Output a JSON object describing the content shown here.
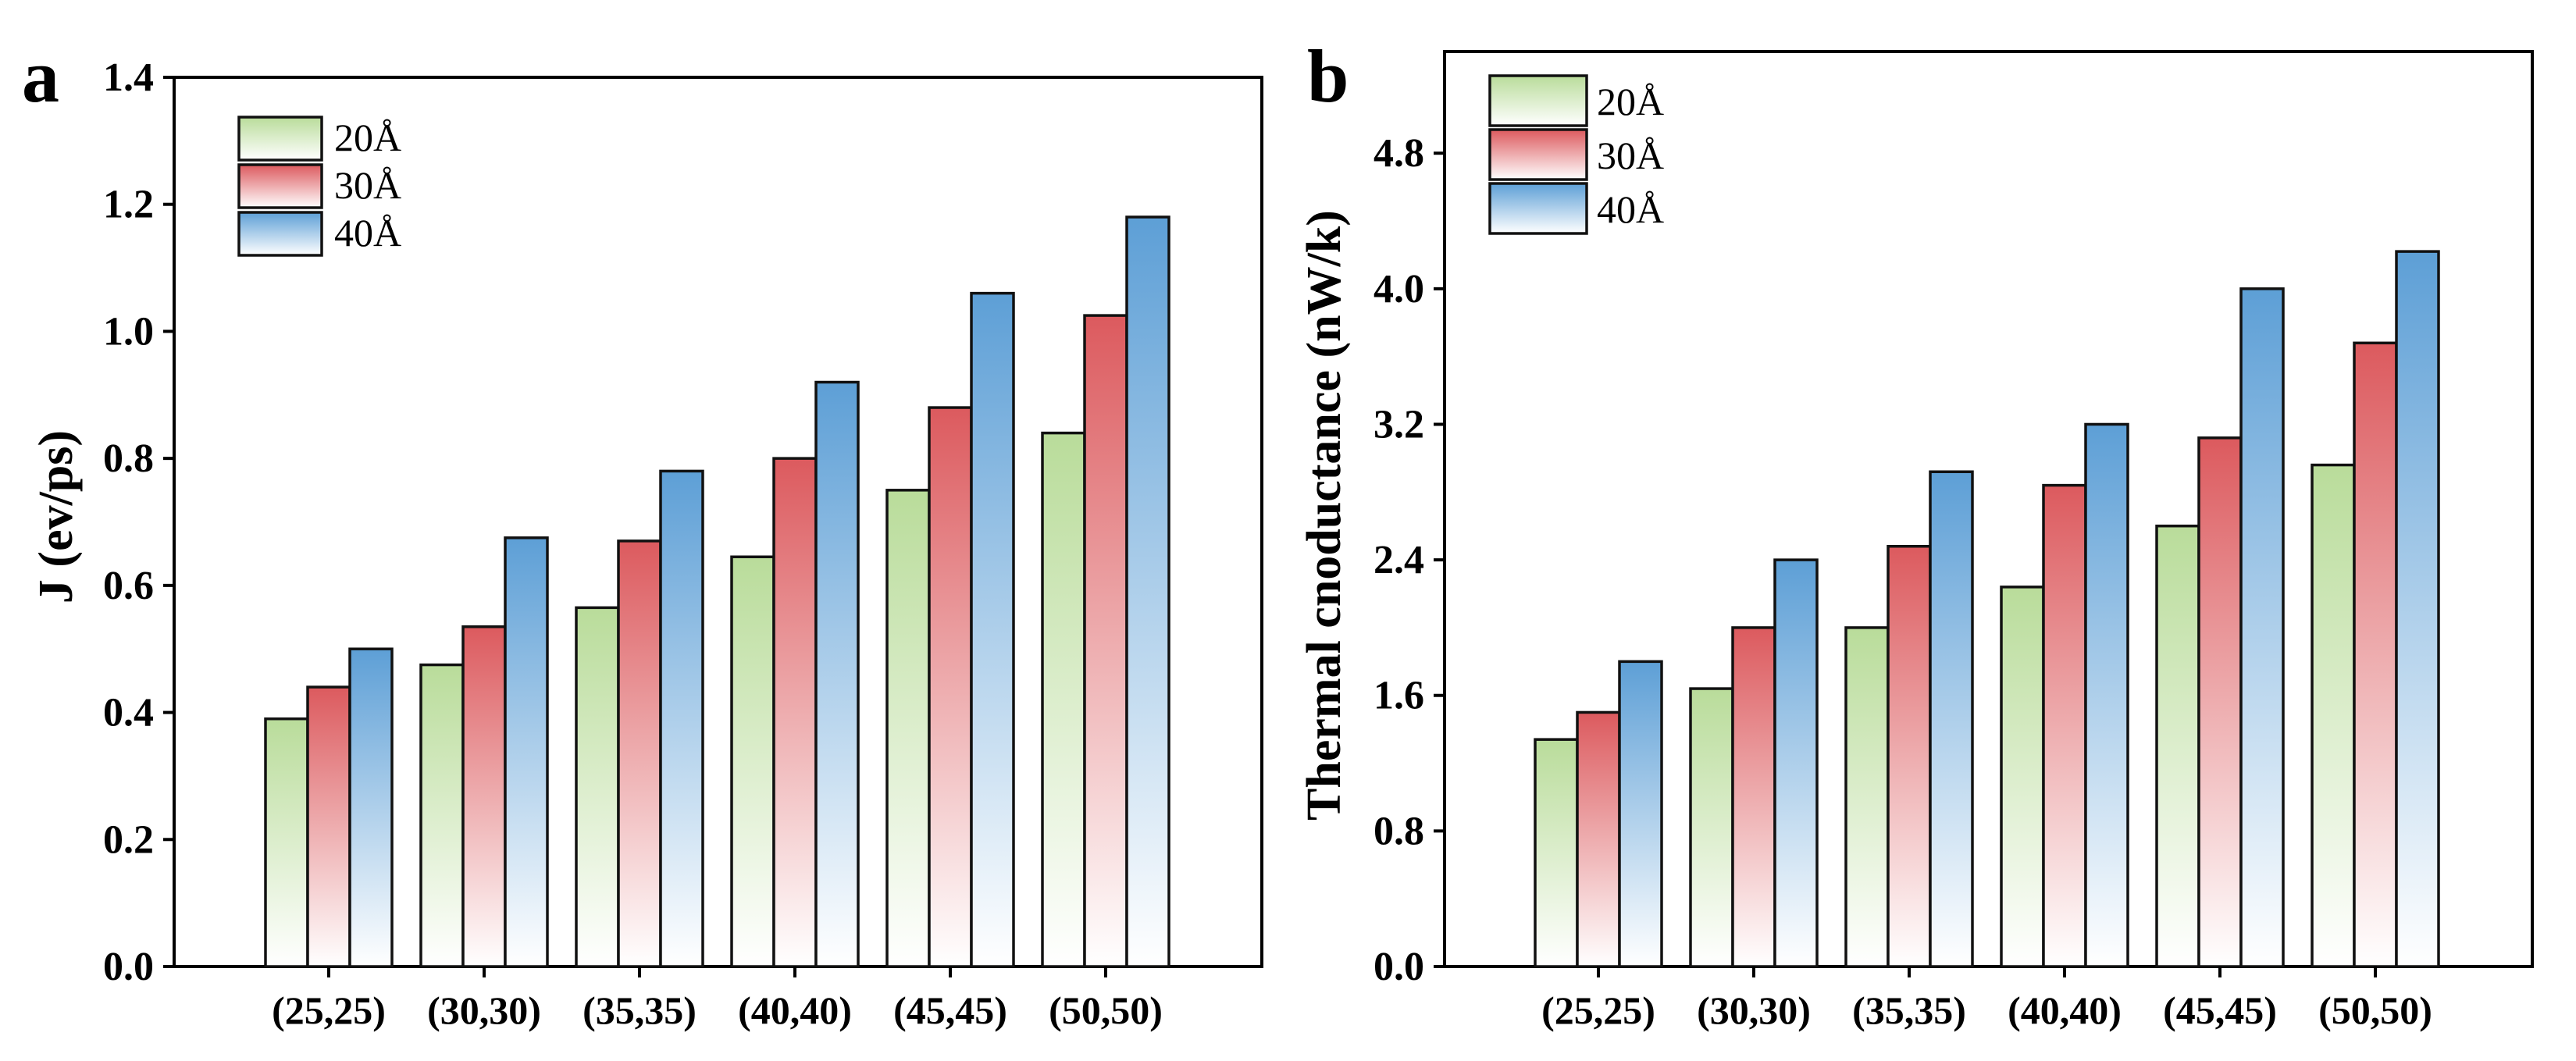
{
  "chart_data": [
    {
      "type": "bar",
      "panel": "a",
      "title": "",
      "xlabel": "",
      "ylabel": "J (ev/ps)",
      "categories": [
        "(25,25)",
        "(30,30)",
        "(35,35)",
        "(40,40)",
        "(45,45)",
        "(50,50)"
      ],
      "series": [
        {
          "name": "20Å",
          "values": [
            0.39,
            0.475,
            0.565,
            0.645,
            0.75,
            0.84
          ]
        },
        {
          "name": "30Å",
          "values": [
            0.44,
            0.535,
            0.67,
            0.8,
            0.88,
            1.025
          ]
        },
        {
          "name": "40Å",
          "values": [
            0.5,
            0.675,
            0.78,
            0.92,
            1.06,
            1.18
          ]
        }
      ],
      "ylim": [
        0,
        1.4
      ],
      "yticks": [
        0.0,
        0.2,
        0.4,
        0.6,
        0.8,
        1.0,
        1.2,
        1.4
      ],
      "ytick_labels": [
        "0.0",
        "0.2",
        "0.4",
        "0.6",
        "0.8",
        "1.0",
        "1.2",
        "1.4"
      ],
      "legend_position": "top-left",
      "grid": false
    },
    {
      "type": "bar",
      "panel": "b",
      "title": "",
      "xlabel": "",
      "ylabel": "Thermal cnoductance (nW/k)",
      "categories": [
        "(25,25)",
        "(30,30)",
        "(35,35)",
        "(40,40)",
        "(45,45)",
        "(50,50)"
      ],
      "series": [
        {
          "name": "20Å",
          "values": [
            1.34,
            1.64,
            2.0,
            2.24,
            2.6,
            2.96
          ]
        },
        {
          "name": "30Å",
          "values": [
            1.5,
            2.0,
            2.48,
            2.84,
            3.12,
            3.68
          ]
        },
        {
          "name": "40Å",
          "values": [
            1.8,
            2.4,
            2.92,
            3.2,
            4.0,
            4.22
          ]
        }
      ],
      "ylim": [
        0,
        5.4
      ],
      "yticks": [
        0.0,
        0.8,
        1.6,
        2.4,
        3.2,
        4.0,
        4.8
      ],
      "ytick_labels": [
        "0.0",
        "0.8",
        "1.6",
        "2.4",
        "3.2",
        "4.0",
        "4.8"
      ],
      "legend_position": "top-left",
      "grid": false
    }
  ],
  "colors": {
    "series_top": [
      "#b9dc9a",
      "#dc5a5e",
      "#5d9fd6"
    ],
    "bar_bottom": "#ffffff",
    "axis": "#000000"
  }
}
